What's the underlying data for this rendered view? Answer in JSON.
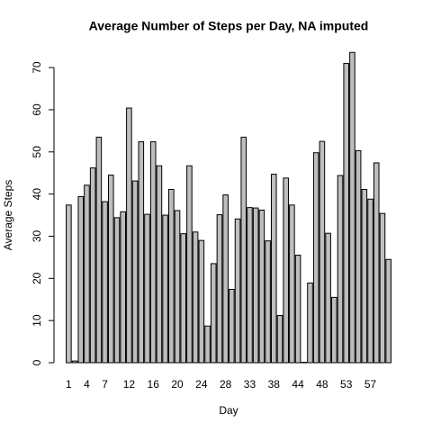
{
  "chart_data": {
    "type": "bar",
    "title": "Average Number of Steps per Day, NA imputed",
    "x_label": "Day",
    "y_label": "Average Steps",
    "categories": [
      "1",
      null,
      null,
      "4",
      null,
      null,
      "7",
      null,
      null,
      null,
      "12",
      null,
      null,
      null,
      "16",
      null,
      null,
      null,
      "20",
      null,
      null,
      null,
      "24",
      null,
      null,
      null,
      "28",
      null,
      null,
      null,
      "33",
      null,
      null,
      null,
      "38",
      null,
      null,
      null,
      "44",
      null,
      null,
      null,
      "48",
      null,
      null,
      null,
      "53",
      null,
      null,
      null,
      "57",
      null,
      null,
      null
    ],
    "values": [
      37.4,
      0.4,
      39.4,
      42.1,
      46.2,
      53.5,
      38.2,
      44.5,
      34.4,
      35.8,
      60.4,
      43.1,
      52.4,
      35.2,
      52.4,
      46.7,
      35.0,
      41.1,
      36.1,
      30.6,
      46.7,
      31.0,
      29.0,
      8.7,
      23.5,
      35.1,
      39.8,
      17.4,
      34.1,
      53.5,
      36.8,
      36.7,
      36.2,
      28.9,
      44.7,
      11.2,
      43.8,
      37.4,
      25.5,
      0.1,
      18.9,
      49.8,
      52.5,
      30.7,
      15.5,
      44.4,
      71.0,
      73.6,
      50.3,
      41.1,
      38.8,
      47.4,
      35.4,
      24.5
    ],
    "color": "#bebebe",
    "ylim": [
      0,
      76
    ],
    "yticks": [
      0,
      10,
      20,
      30,
      40,
      50,
      60,
      70
    ],
    "grid": false
  }
}
